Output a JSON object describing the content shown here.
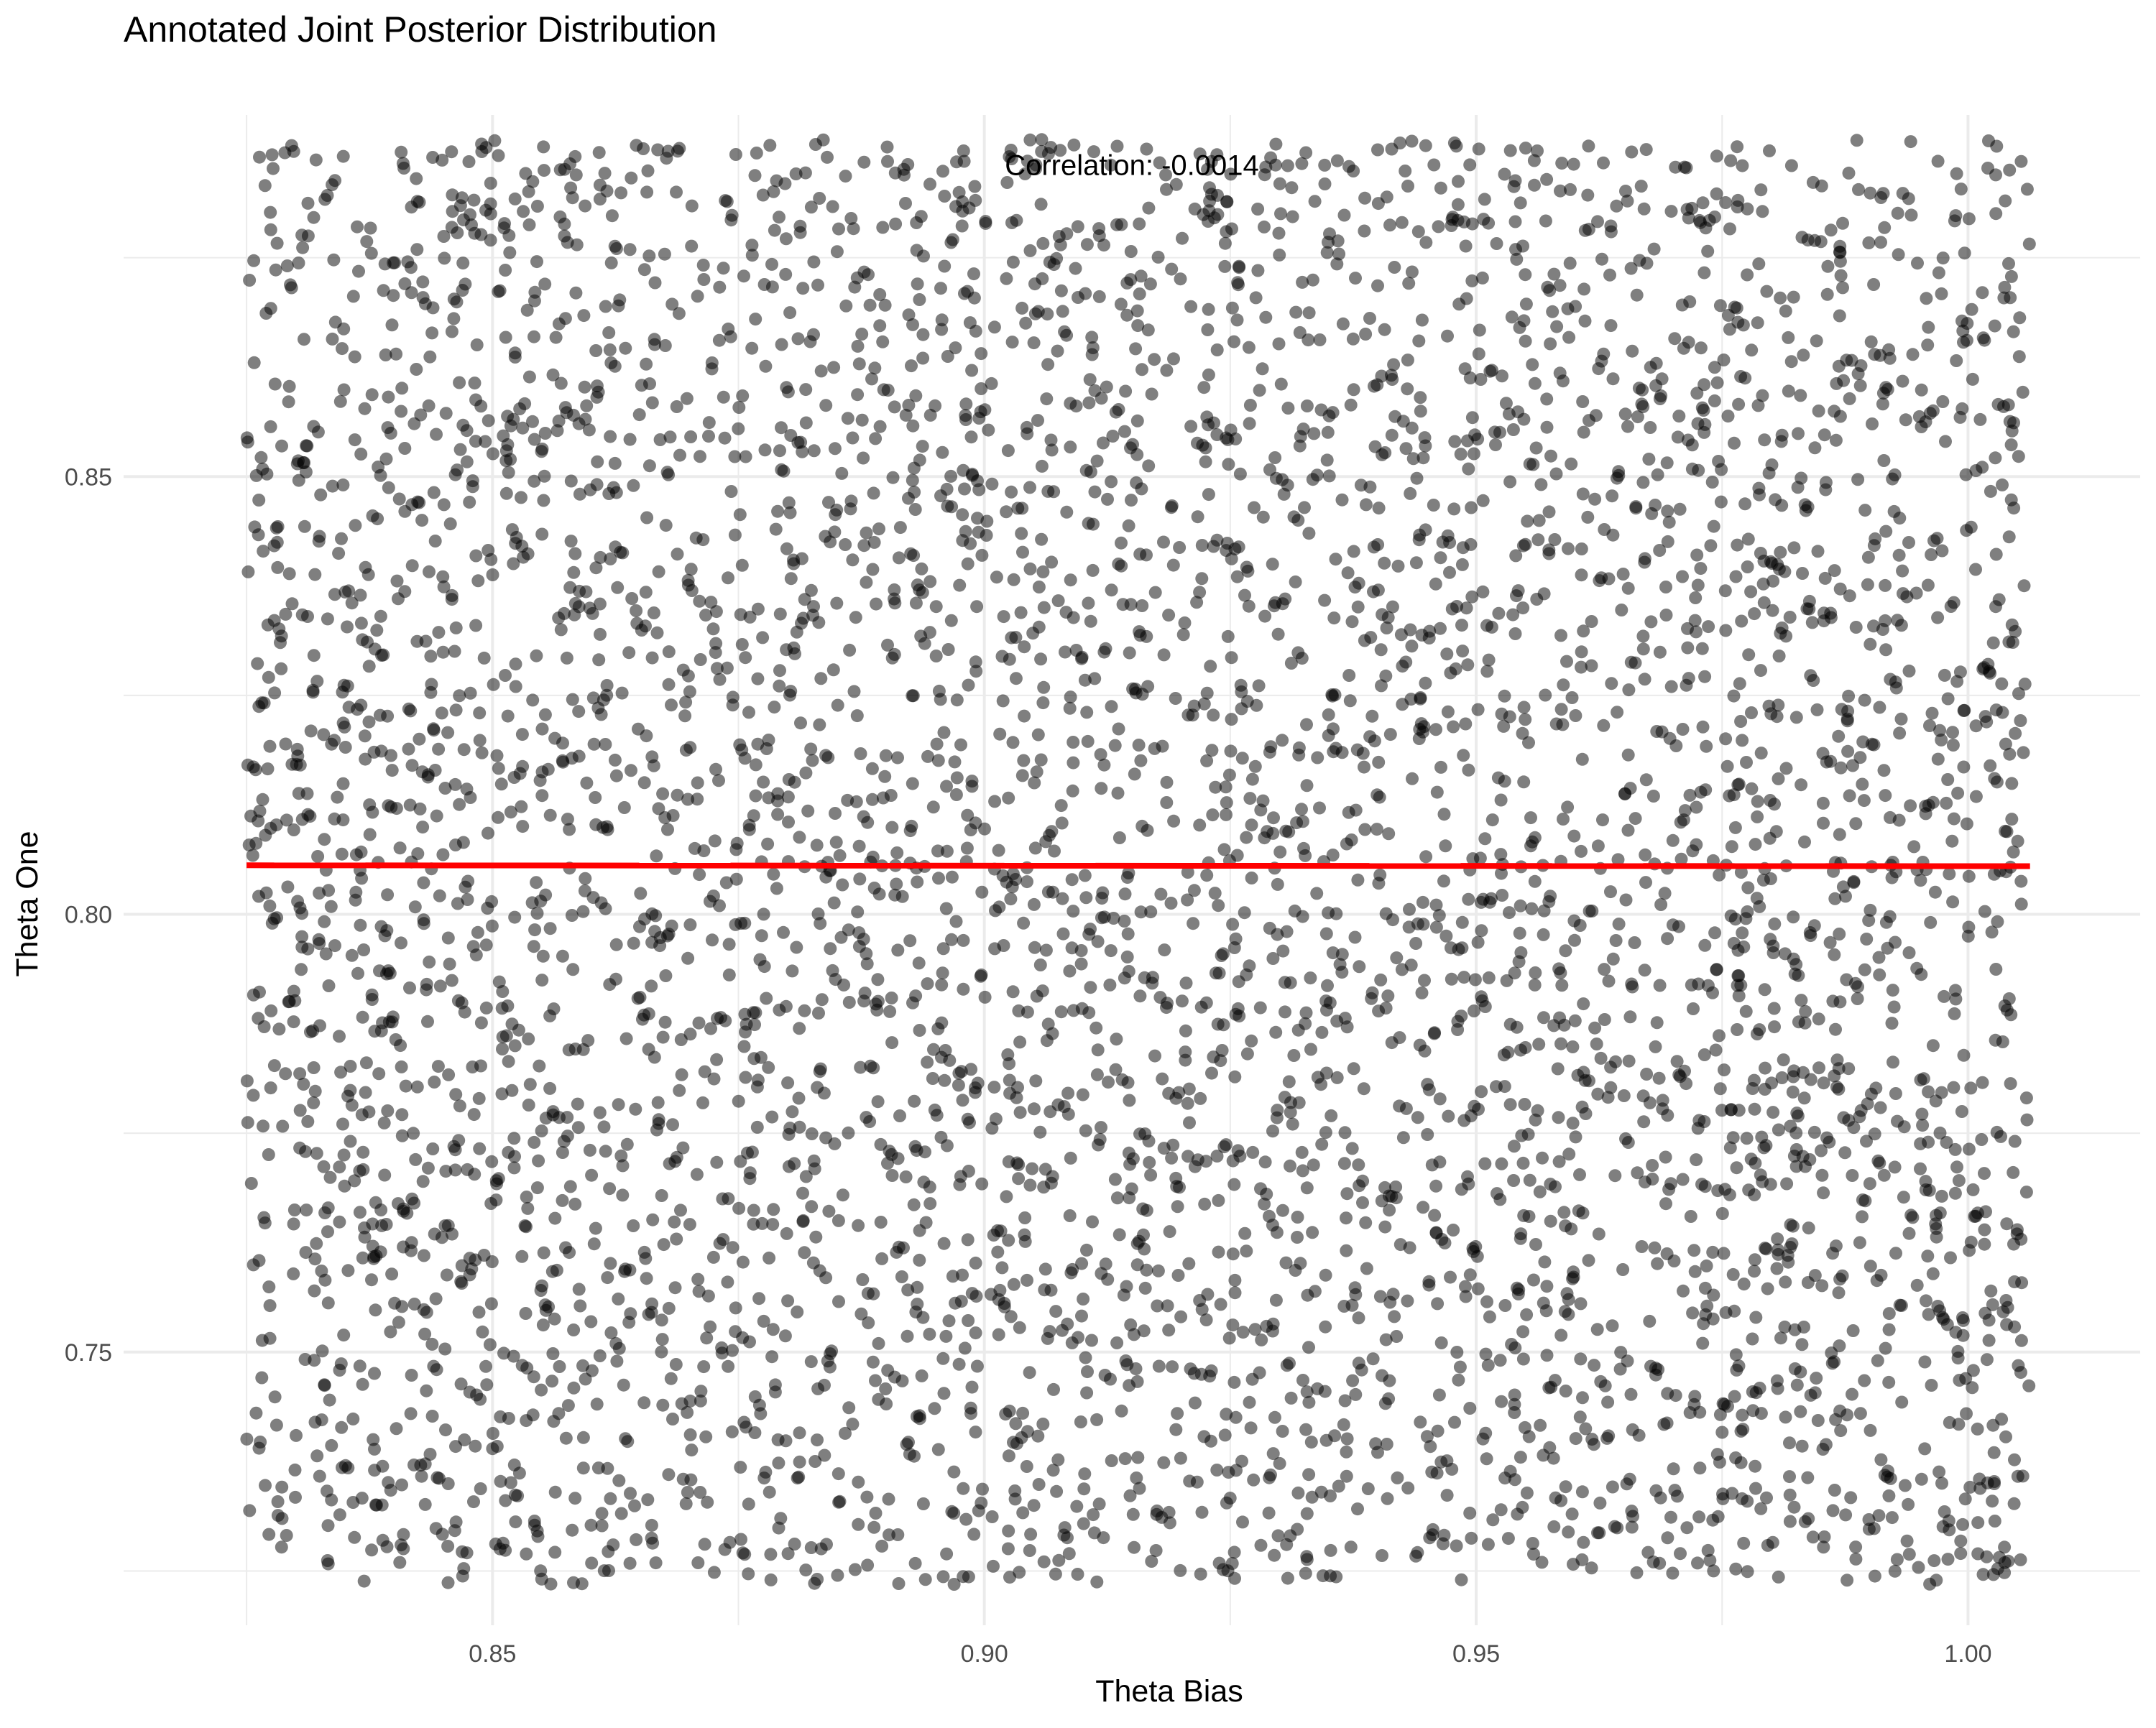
{
  "chart_data": {
    "type": "scatter",
    "title": "Annotated Joint Posterior Distribution",
    "xlabel": "Theta Bias",
    "ylabel": "Theta One",
    "xlim": [
      0.8125,
      1.0175
    ],
    "ylim": [
      0.7188,
      0.8913
    ],
    "x_ticks": [
      0.85,
      0.9,
      0.95,
      1.0
    ],
    "x_tick_labels": [
      "0.85",
      "0.90",
      "0.95",
      "1.00"
    ],
    "y_ticks": [
      0.75,
      0.8,
      0.85
    ],
    "y_tick_labels": [
      "0.75",
      "0.80",
      "0.85"
    ],
    "x_minor_ticks": [
      0.825,
      0.875,
      0.925,
      0.975
    ],
    "y_minor_ticks": [
      0.725,
      0.775,
      0.825,
      0.875
    ],
    "grid": true,
    "legend": "none",
    "points": {
      "color": "#000000",
      "opacity": 0.5,
      "count": 5000,
      "x_range": [
        0.825,
        1.0063
      ],
      "y_range": [
        0.7234,
        0.8885
      ],
      "distribution": "uniform"
    },
    "regression_line": {
      "color": "#FF0000",
      "x": [
        0.825,
        1.0063
      ],
      "y": [
        0.8056,
        0.8055
      ]
    },
    "annotation": {
      "text": "Correlation: -0.0014",
      "x": 0.915,
      "y": 0.8856
    },
    "colors": {
      "grid": "#EBEBEB",
      "axis_text": "#4D4D4D",
      "title": "#000000"
    }
  }
}
